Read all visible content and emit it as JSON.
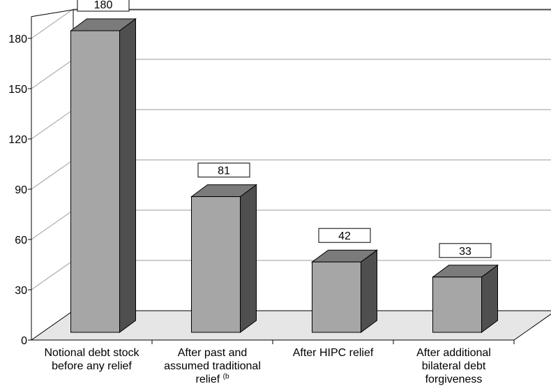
{
  "chart_data": {
    "type": "bar",
    "categories": [
      [
        "Notional debt stock",
        "before any relief"
      ],
      [
        "After past and",
        "assumed traditional",
        "relief (b"
      ],
      [
        "After HIPC relief"
      ],
      [
        "After additional",
        "bilateral debt",
        "forgiveness"
      ]
    ],
    "values": [
      180,
      81,
      42,
      33
    ],
    "data_labels": [
      "180",
      "81",
      "42",
      "33"
    ],
    "title": "",
    "xlabel": "",
    "ylabel": "",
    "ylim": [
      0,
      180
    ],
    "yticks": [
      0,
      30,
      60,
      90,
      120,
      150,
      180
    ],
    "grid": true,
    "style": "3d-bar",
    "colors": {
      "bar_front": "#a6a6a6",
      "bar_top": "#7b7b7b",
      "bar_side": "#4f4f4f",
      "floor": "#e6e6e6",
      "gridline": "#999999"
    }
  }
}
